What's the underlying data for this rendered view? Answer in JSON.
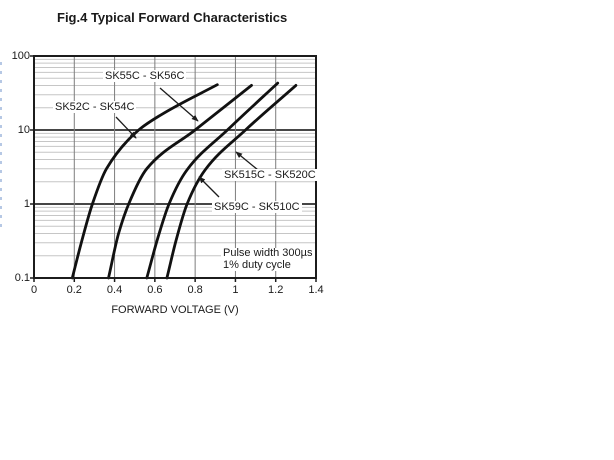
{
  "chart_data": {
    "type": "line",
    "title": "Fig.4 Typical Forward Characteristics",
    "xlabel": "FORWARD VOLTAGE (V)",
    "ylabel": "",
    "x_axis": {
      "scale": "linear",
      "min": 0,
      "max": 1.4,
      "ticks": [
        0,
        0.2,
        0.4,
        0.6,
        0.8,
        1,
        1.2,
        1.4
      ],
      "tick_labels": [
        "0",
        "0.2",
        "0.4",
        "0.6",
        "0.8",
        "1",
        "1.2",
        "1.4"
      ]
    },
    "y_axis": {
      "scale": "log",
      "min": 0.1,
      "max": 100,
      "ticks": [
        100,
        10,
        1,
        0.1
      ],
      "tick_labels": [
        "100",
        "10",
        "1",
        "0.1"
      ]
    },
    "grid": {
      "vertical_at": [
        0.2,
        0.4,
        0.6,
        0.8,
        1.0,
        1.2
      ],
      "horizontal_major_at": [
        1,
        10
      ],
      "log_minor_lines": true
    },
    "series": [
      {
        "name": "SK52C - SK54C",
        "points_v_i": [
          [
            0.19,
            0.1
          ],
          [
            0.235,
            0.3
          ],
          [
            0.29,
            1
          ],
          [
            0.36,
            3
          ],
          [
            0.52,
            10
          ],
          [
            0.63,
            16
          ],
          [
            0.91,
            41
          ]
        ]
      },
      {
        "name": "SK55C - SK56C",
        "points_v_i": [
          [
            0.37,
            0.1
          ],
          [
            0.42,
            0.4
          ],
          [
            0.47,
            1
          ],
          [
            0.56,
            3
          ],
          [
            0.8,
            10
          ],
          [
            1.08,
            40
          ]
        ]
      },
      {
        "name": "SK59C - SK510C",
        "points_v_i": [
          [
            0.56,
            0.1
          ],
          [
            0.615,
            0.35
          ],
          [
            0.67,
            1
          ],
          [
            0.76,
            2.9
          ],
          [
            0.96,
            10
          ],
          [
            1.21,
            43
          ]
        ]
      },
      {
        "name": "SK515C - SK520C",
        "points_v_i": [
          [
            0.66,
            0.1
          ],
          [
            0.705,
            0.32
          ],
          [
            0.76,
            1
          ],
          [
            0.85,
            2.9
          ],
          [
            1.05,
            10
          ],
          [
            1.3,
            40
          ]
        ]
      }
    ],
    "annotations": [
      {
        "text": "SK55C - SK56C"
      },
      {
        "text": "SK52C - SK54C"
      },
      {
        "text": "SK515C - SK520C"
      },
      {
        "text": "SK59C - SK510C"
      }
    ],
    "note_lines": [
      "Pulse width 300µs",
      "1% duty cycle"
    ],
    "legend_position": "none",
    "colors": {
      "curve": "#111111",
      "grid_minor": "#c6c6c6",
      "grid_major": "#2b2b2b",
      "grid_vertical": "#7d7d7d",
      "axis": "#1c1c1c",
      "text": "#1a1a1a"
    }
  }
}
